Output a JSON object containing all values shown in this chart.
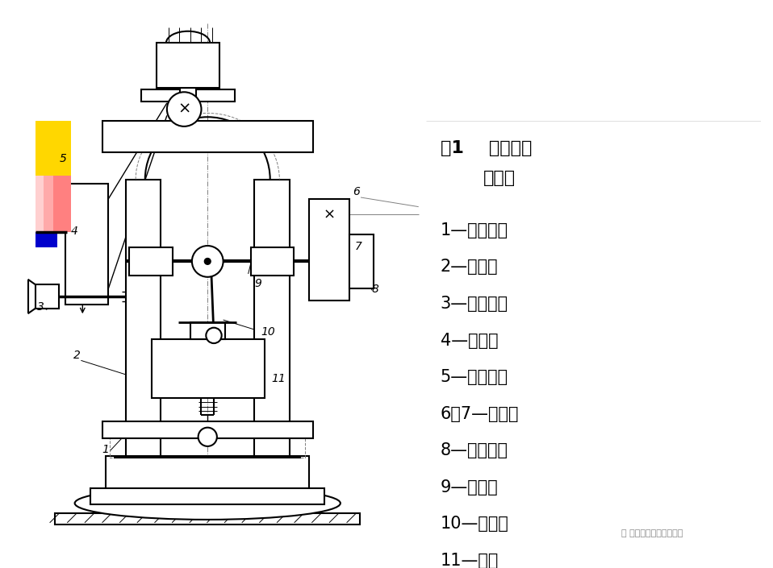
{
  "bg_color": "#ffffff",
  "title_line1": "图1    曲柄压力",
  "title_line2": "机简图",
  "legend_items": [
    "1—工作台；",
    "2—床身；",
    "3—制动器；",
    "4—带轮；",
    "5—电动机；",
    "6、7—齿轮；",
    "8—离合器；",
    "9—曲轴；",
    "10—连杆；",
    "11—滑块"
  ],
  "watermark": "五金冲压模具设计教学"
}
